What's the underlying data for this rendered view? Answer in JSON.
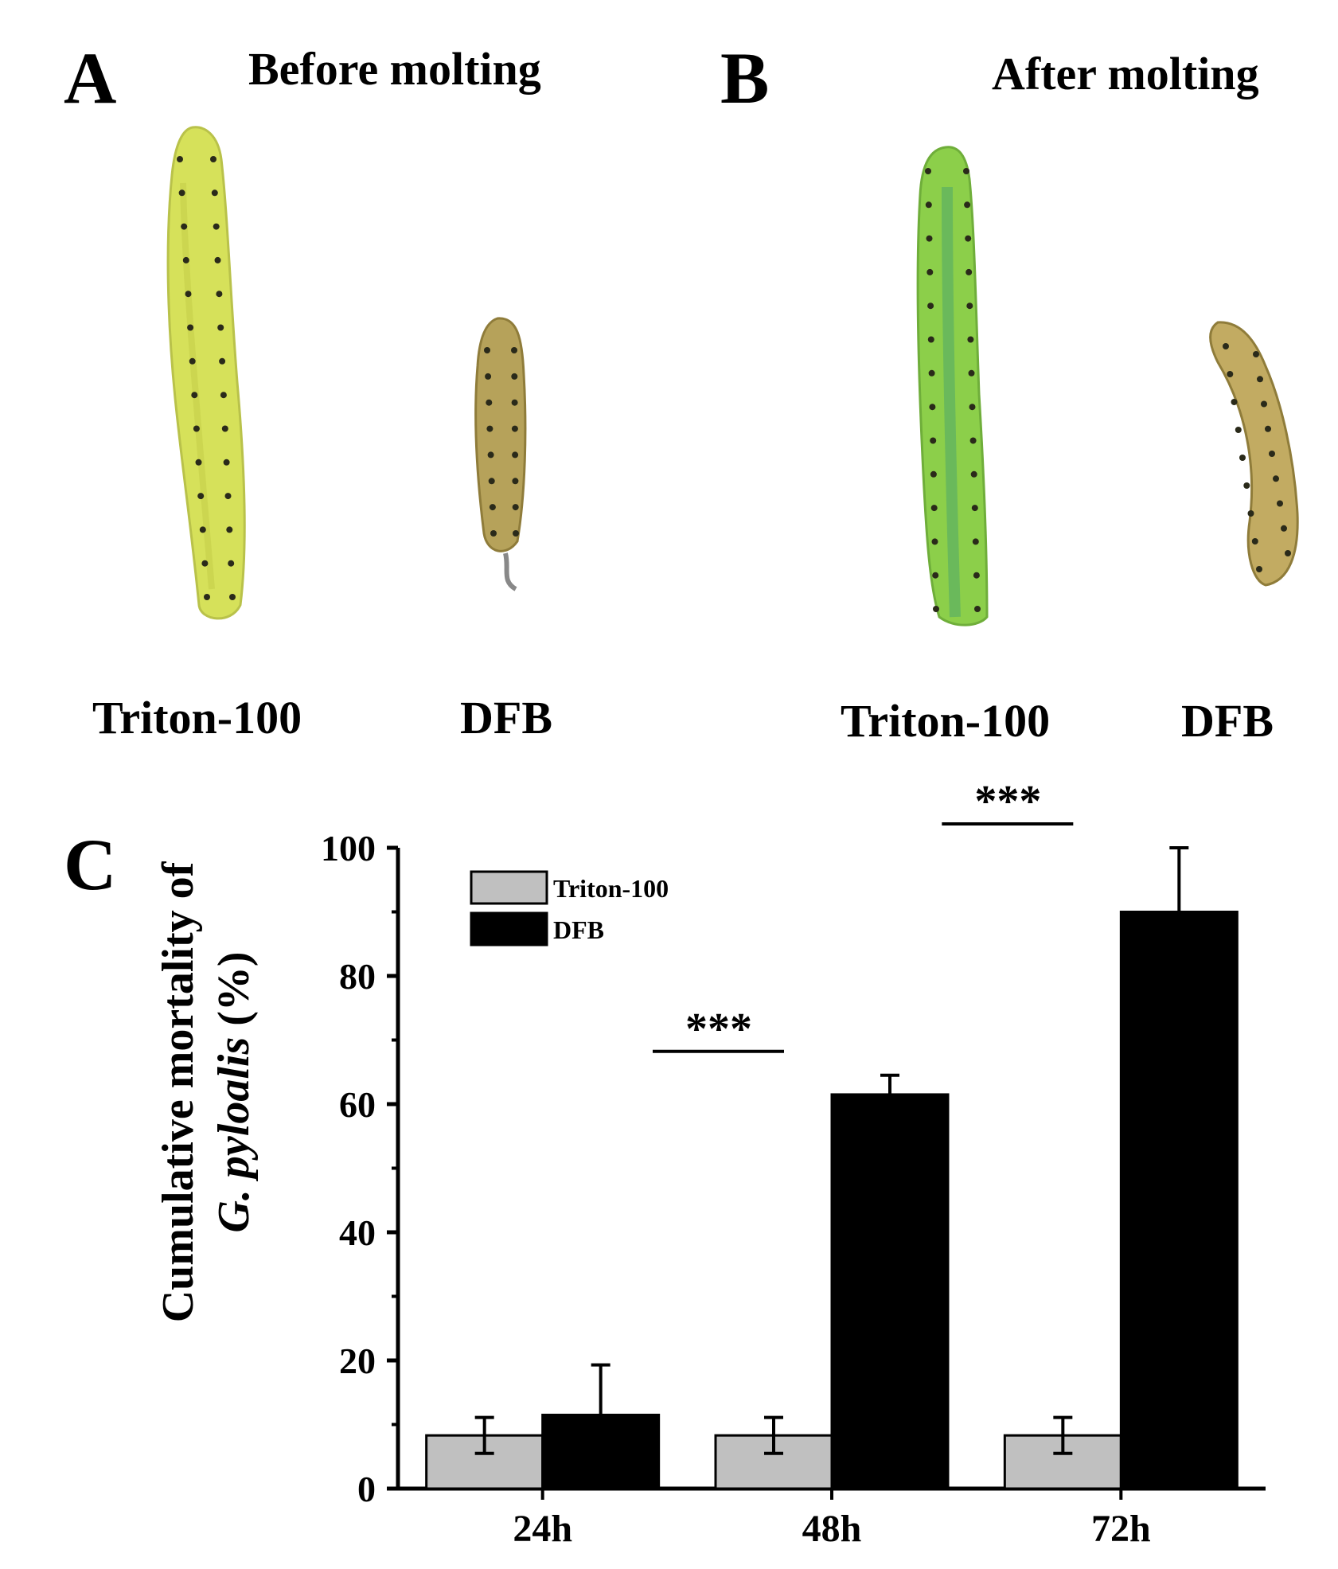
{
  "panels": {
    "a": {
      "letter": "A",
      "title": "Before molting",
      "labels": {
        "control": "Triton-100",
        "treatment": "DFB"
      }
    },
    "b": {
      "letter": "B",
      "title": "After molting",
      "labels": {
        "control": "Triton-100",
        "treatment": "DFB"
      }
    },
    "c": {
      "letter": "C"
    }
  },
  "colors": {
    "control_bar": "#c0c0c0",
    "treatment_bar": "#000000",
    "larva_green": "#d6e15a",
    "larva_green_bright": "#8ccf4a",
    "larva_brown": "#b6a25a"
  },
  "chart_data": {
    "type": "bar",
    "categories": [
      "24h",
      "48h",
      "72h"
    ],
    "series": [
      {
        "name": "Triton-100",
        "values": [
          8.3,
          8.3,
          8.3
        ],
        "errors": [
          2.8,
          2.8,
          2.8
        ]
      },
      {
        "name": "DFB",
        "values": [
          11.5,
          61.5,
          90.0
        ],
        "errors": [
          7.8,
          3.0,
          10.0
        ]
      }
    ],
    "ylabel_line1": "Cumulative mortality of",
    "ylabel_line2_italic": "G. pyloalis",
    "ylabel_line2_rest": " (%)",
    "ylim": [
      0,
      100
    ],
    "yticks": [
      0,
      20,
      40,
      60,
      80,
      100
    ],
    "ytick_labels": [
      "0",
      "20",
      "40",
      "60",
      "80",
      "100"
    ],
    "legend_position": "top-left",
    "grid": false,
    "significance": [
      {
        "category": "48h",
        "label": "***"
      },
      {
        "category": "72h",
        "label": "***"
      }
    ]
  }
}
